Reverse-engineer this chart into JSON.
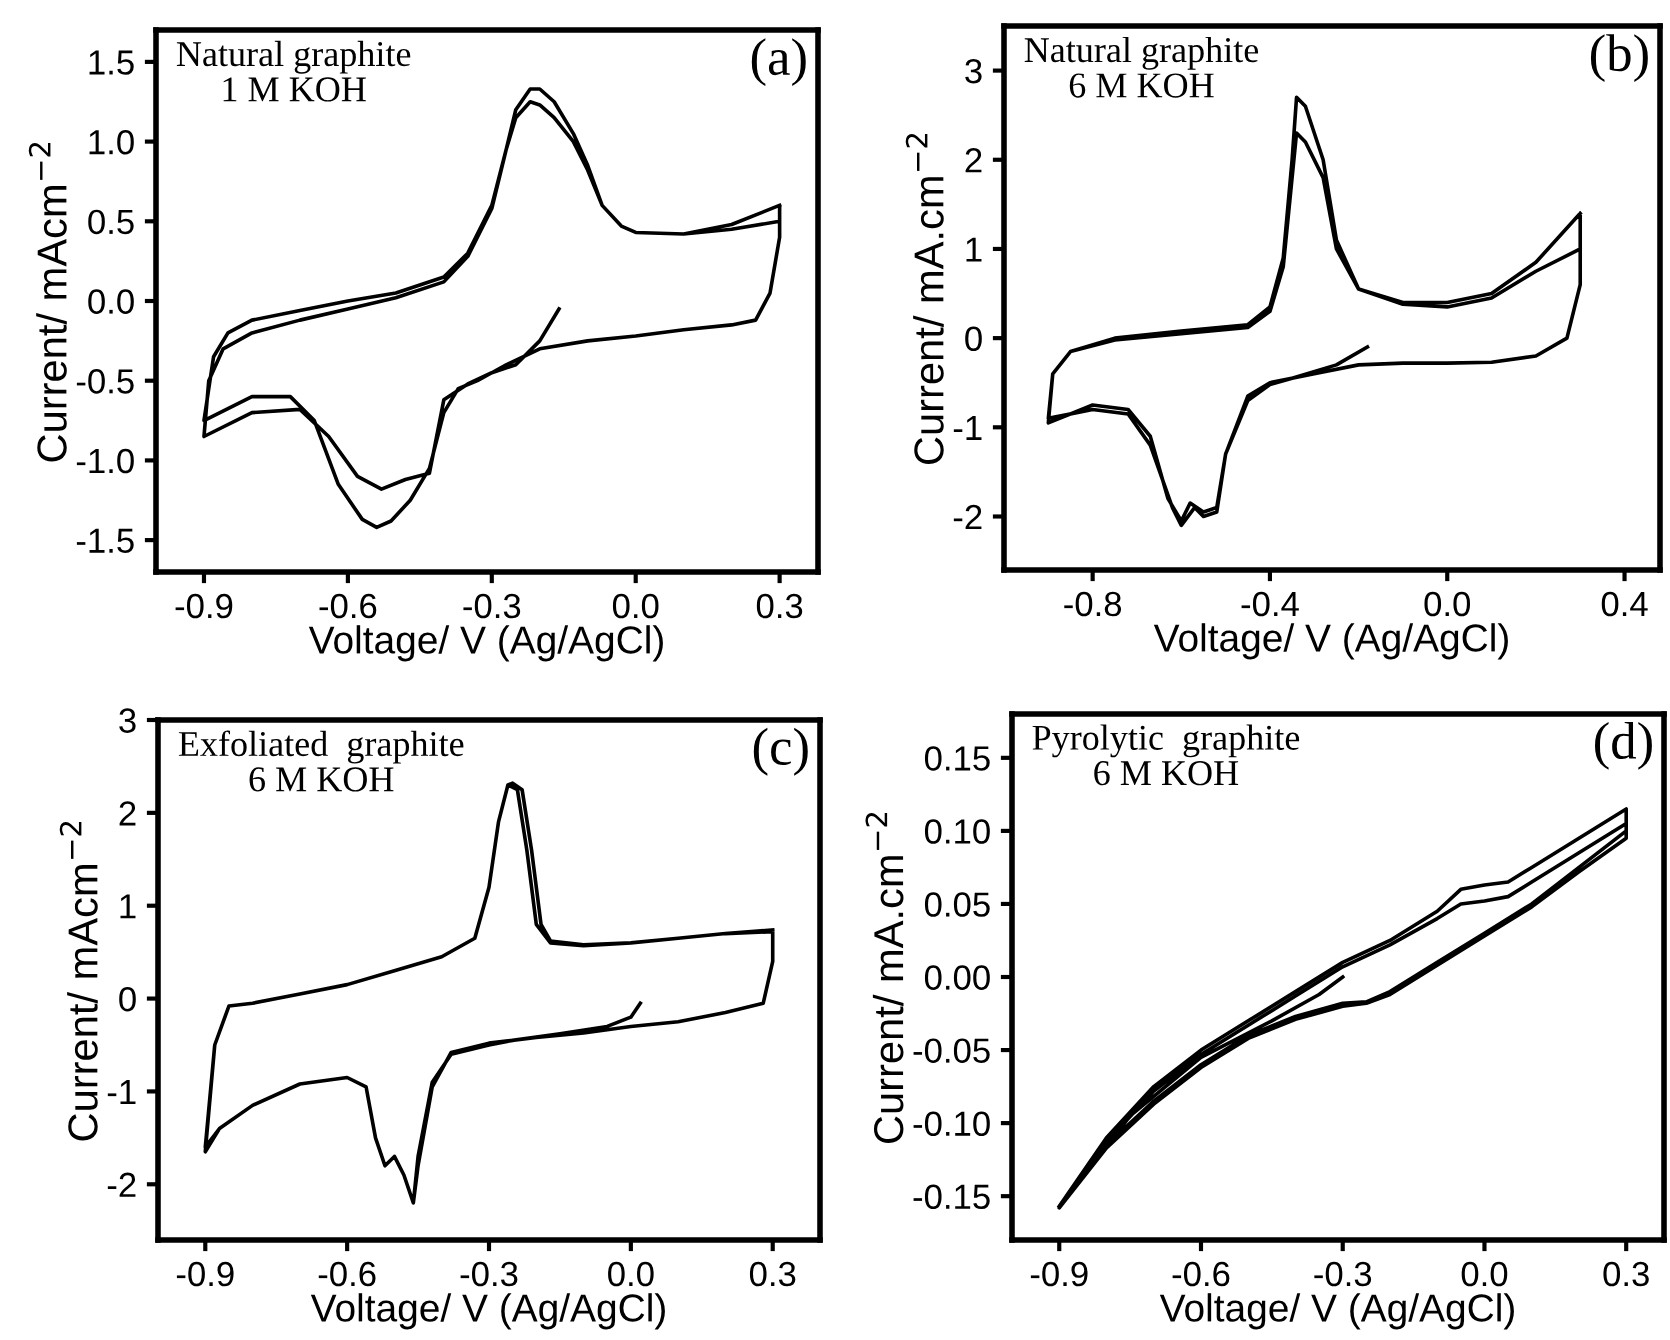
{
  "chart_data": [
    {
      "type": "line",
      "xlabel": "Voltage/ V (Ag/AgCl)",
      "ylabel": "Current/ mAcm$^{−2}$",
      "annotations": [
        "Natural graphite\n1 M KOH",
        "(a)"
      ],
      "xlim": [
        -1.0,
        0.38
      ],
      "xticks": [
        {
          "value": -0.9,
          "label": "-0.9"
        },
        {
          "value": -0.6,
          "label": "-0.6"
        },
        {
          "value": -0.3,
          "label": "-0.3"
        },
        {
          "value": 0.0,
          "label": "0.0"
        },
        {
          "value": 0.3,
          "label": "0.3"
        }
      ],
      "ylim": [
        -1.7,
        1.7
      ],
      "yticks": [
        {
          "value": -1.5,
          "label": "-1.5"
        },
        {
          "value": -1.0,
          "label": "-1.0"
        },
        {
          "value": -0.5,
          "label": "-0.5"
        },
        {
          "value": 0.0,
          "label": "0.0"
        },
        {
          "value": 0.5,
          "label": "0.5"
        },
        {
          "value": 1.0,
          "label": "1.0"
        },
        {
          "value": 1.5,
          "label": "1.5"
        }
      ],
      "grid": false,
      "legend": false,
      "marker": "none",
      "line_style": "solid",
      "series": [
        {
          "color": "#000000",
          "x": [
            -0.16,
            -0.2,
            -0.25,
            -0.3,
            -0.35,
            -0.4,
            -0.43,
            -0.48,
            -0.53,
            -0.58,
            -0.64,
            -0.7,
            -0.8,
            -0.9,
            -0.89,
            -0.86,
            -0.8,
            -0.7,
            -0.6,
            -0.5,
            -0.4,
            -0.35,
            -0.3,
            -0.27,
            -0.25,
            -0.22,
            -0.2,
            -0.17,
            -0.13,
            -0.1,
            -0.07,
            -0.03,
            0.0,
            0.1,
            0.2,
            0.3,
            0.3,
            0.3,
            0.28,
            0.25,
            0.2,
            0.1,
            0.0,
            -0.1,
            -0.2,
            -0.27,
            -0.33,
            -0.37,
            -0.4,
            -0.43,
            -0.47,
            -0.51,
            -0.54,
            -0.57,
            -0.62,
            -0.67,
            -0.72,
            -0.8,
            -0.9,
            -0.88,
            -0.85,
            -0.8,
            -0.7,
            -0.6,
            -0.5,
            -0.4,
            -0.35,
            -0.3,
            -0.27,
            -0.25,
            -0.22,
            -0.2,
            -0.17,
            -0.13,
            -0.1,
            -0.07,
            -0.03,
            0.0,
            0.1,
            0.2,
            0.3
          ],
          "values": [
            -0.05,
            -0.25,
            -0.4,
            -0.45,
            -0.52,
            -0.62,
            -1.08,
            -1.12,
            -1.18,
            -1.1,
            -0.85,
            -0.68,
            -0.7,
            -0.85,
            -0.5,
            -0.3,
            -0.2,
            -0.12,
            -0.05,
            0.02,
            0.12,
            0.28,
            0.58,
            0.95,
            1.15,
            1.25,
            1.23,
            1.15,
            1.0,
            0.82,
            0.6,
            0.47,
            0.43,
            0.42,
            0.45,
            0.5,
            0.6,
            0.4,
            0.05,
            -0.12,
            -0.15,
            -0.18,
            -0.22,
            -0.25,
            -0.3,
            -0.4,
            -0.5,
            -0.55,
            -0.7,
            -1.05,
            -1.25,
            -1.38,
            -1.42,
            -1.37,
            -1.15,
            -0.75,
            -0.6,
            -0.6,
            -0.75,
            -0.35,
            -0.2,
            -0.12,
            -0.06,
            0.0,
            0.05,
            0.15,
            0.3,
            0.6,
            0.95,
            1.2,
            1.33,
            1.33,
            1.25,
            1.05,
            0.85,
            0.6,
            0.47,
            0.43,
            0.42,
            0.48,
            0.6
          ]
        }
      ]
    },
    {
      "type": "line",
      "xlabel": "Voltage/ V (Ag/AgCl)",
      "ylabel": "Current/ mA.cm$^{−2}$",
      "annotations": [
        "Natural graphite\n6 M KOH",
        "(b)"
      ],
      "xlim": [
        -1.0,
        0.48
      ],
      "xticks": [
        {
          "value": -0.8,
          "label": "-0.8"
        },
        {
          "value": -0.4,
          "label": "-0.4"
        },
        {
          "value": 0.0,
          "label": "0.0"
        },
        {
          "value": 0.4,
          "label": "0.4"
        }
      ],
      "ylim": [
        -2.6,
        3.5
      ],
      "yticks": [
        {
          "value": -2,
          "label": "-2"
        },
        {
          "value": -1,
          "label": "-1"
        },
        0,
        1,
        2,
        3
      ],
      "grid": false,
      "legend": false,
      "marker": "none",
      "line_style": "solid",
      "series": [
        {
          "color": "#000000",
          "x": [
            -0.18,
            -0.25,
            -0.35,
            -0.4,
            -0.45,
            -0.5,
            -0.52,
            -0.55,
            -0.58,
            -0.6,
            -0.63,
            -0.67,
            -0.72,
            -0.8,
            -0.9,
            -0.89,
            -0.85,
            -0.75,
            -0.6,
            -0.45,
            -0.4,
            -0.37,
            -0.35,
            -0.34,
            -0.32,
            -0.28,
            -0.25,
            -0.2,
            -0.1,
            0.0,
            0.1,
            0.2,
            0.3,
            0.3,
            0.3,
            0.27,
            0.2,
            0.1,
            0.0,
            -0.1,
            -0.2,
            -0.3,
            -0.4,
            -0.45,
            -0.5,
            -0.52,
            -0.55,
            -0.57,
            -0.6,
            -0.62,
            -0.67,
            -0.72,
            -0.8,
            -0.9,
            -0.89,
            -0.85,
            -0.75,
            -0.6,
            -0.45,
            -0.4,
            -0.37,
            -0.35,
            -0.34,
            -0.32,
            -0.28,
            -0.25,
            -0.2,
            -0.1,
            0.0,
            0.1,
            0.2,
            0.3
          ],
          "values": [
            -0.1,
            -0.3,
            -0.45,
            -0.52,
            -0.7,
            -1.3,
            -1.9,
            -1.95,
            -1.85,
            -2.05,
            -1.8,
            -1.1,
            -0.8,
            -0.75,
            -0.95,
            -0.4,
            -0.15,
            -0.02,
            0.05,
            0.12,
            0.3,
            0.8,
            1.8,
            2.3,
            2.2,
            1.8,
            1.0,
            0.55,
            0.38,
            0.35,
            0.45,
            0.75,
            1.0,
            1.4,
            0.6,
            0.0,
            -0.2,
            -0.27,
            -0.28,
            -0.28,
            -0.3,
            -0.4,
            -0.5,
            -0.65,
            -1.3,
            -1.95,
            -2.0,
            -1.9,
            -2.1,
            -1.9,
            -1.2,
            -0.85,
            -0.8,
            -0.9,
            -0.4,
            -0.15,
            0.0,
            0.08,
            0.15,
            0.35,
            0.9,
            2.0,
            2.7,
            2.6,
            2.0,
            1.1,
            0.55,
            0.4,
            0.4,
            0.5,
            0.85,
            1.4
          ]
        }
      ]
    },
    {
      "type": "line",
      "xlabel": "Voltage/ V (Ag/AgCl)",
      "ylabel": "Current/ mAcm$^{−2}$",
      "annotations": [
        "Exfoliated  graphite\n6 M KOH",
        "(c)"
      ],
      "xlim": [
        -1.0,
        0.4
      ],
      "xticks": [
        {
          "value": -0.9,
          "label": "-0.9"
        },
        {
          "value": -0.6,
          "label": "-0.6"
        },
        {
          "value": -0.3,
          "label": "-0.3"
        },
        {
          "value": 0.0,
          "label": "0.0"
        },
        {
          "value": 0.3,
          "label": "0.3"
        }
      ],
      "ylim": [
        -2.6,
        3.0
      ],
      "yticks": [
        {
          "value": -2,
          "label": "-2"
        },
        {
          "value": -1,
          "label": "-1"
        },
        0,
        1,
        2,
        3
      ],
      "grid": false,
      "legend": false,
      "marker": "none",
      "line_style": "solid",
      "series": [
        {
          "color": "#000000",
          "x": [
            0.02,
            0.0,
            -0.05,
            -0.15,
            -0.25,
            -0.3,
            -0.38,
            -0.42,
            -0.45,
            -0.46,
            -0.48,
            -0.5,
            -0.52,
            -0.54,
            -0.56,
            -0.6,
            -0.7,
            -0.8,
            -0.87,
            -0.9,
            -0.88,
            -0.85,
            -0.8,
            -0.7,
            -0.6,
            -0.5,
            -0.4,
            -0.33,
            -0.3,
            -0.28,
            -0.26,
            -0.24,
            -0.22,
            -0.2,
            -0.17,
            -0.1,
            0.0,
            0.1,
            0.2,
            0.3,
            0.3,
            0.28,
            0.2,
            0.1,
            0.0,
            -0.1,
            -0.2,
            -0.3,
            -0.38,
            -0.42,
            -0.45,
            -0.46,
            -0.48,
            -0.5,
            -0.52,
            -0.54,
            -0.56,
            -0.6,
            -0.7,
            -0.8,
            -0.87,
            -0.9,
            -0.88,
            -0.85,
            -0.8,
            -0.7,
            -0.6,
            -0.5,
            -0.4,
            -0.33,
            -0.3,
            -0.28,
            -0.26,
            -0.25,
            -0.23,
            -0.21,
            -0.19,
            -0.17,
            -0.1,
            0.0,
            0.1,
            0.2,
            0.3
          ],
          "values": [
            -0.05,
            -0.2,
            -0.3,
            -0.38,
            -0.45,
            -0.5,
            -0.6,
            -0.9,
            -1.7,
            -2.2,
            -1.9,
            -1.7,
            -1.8,
            -1.5,
            -0.95,
            -0.85,
            -0.92,
            -1.15,
            -1.4,
            -1.65,
            -0.5,
            -0.08,
            -0.05,
            0.05,
            0.15,
            0.3,
            0.45,
            0.65,
            1.2,
            1.9,
            2.3,
            2.25,
            1.6,
            0.8,
            0.6,
            0.57,
            0.6,
            0.65,
            0.7,
            0.72,
            0.4,
            -0.05,
            -0.15,
            -0.25,
            -0.3,
            -0.37,
            -0.42,
            -0.48,
            -0.58,
            -0.95,
            -1.8,
            -2.2,
            -1.9,
            -1.7,
            -1.8,
            -1.5,
            -0.95,
            -0.85,
            -0.92,
            -1.15,
            -1.4,
            -1.6,
            -0.5,
            -0.08,
            -0.05,
            0.05,
            0.15,
            0.3,
            0.45,
            0.65,
            1.2,
            1.9,
            2.3,
            2.32,
            2.25,
            1.6,
            0.8,
            0.62,
            0.58,
            0.6,
            0.65,
            0.7,
            0.74
          ]
        }
      ]
    },
    {
      "type": "line",
      "xlabel": "Voltage/ V (Ag/AgCl)",
      "ylabel": "Current/ mA.cm$^{−2}$",
      "annotations": [
        "Pyrolytic  graphite\n6 M KOH",
        "(d)"
      ],
      "xlim": [
        -1.0,
        0.38
      ],
      "xticks": [
        {
          "value": -0.9,
          "label": "-0.9"
        },
        {
          "value": -0.6,
          "label": "-0.6"
        },
        {
          "value": -0.3,
          "label": "-0.3"
        },
        {
          "value": 0.0,
          "label": "0.0"
        },
        {
          "value": 0.3,
          "label": "0.3"
        }
      ],
      "ylim": [
        -0.18,
        0.18
      ],
      "yticks": [
        {
          "value": -0.15,
          "label": "-0.15"
        },
        {
          "value": -0.1,
          "label": "-0.10"
        },
        {
          "value": -0.05,
          "label": "-0.05"
        },
        {
          "value": 0.0,
          "label": "0.00"
        },
        {
          "value": 0.05,
          "label": "0.05"
        },
        {
          "value": 0.1,
          "label": "0.10"
        },
        {
          "value": 0.15,
          "label": "0.15"
        }
      ],
      "grid": false,
      "legend": false,
      "marker": "none",
      "line_style": "solid",
      "series": [
        {
          "color": "#000000",
          "x": [
            -0.3,
            -0.35,
            -0.45,
            -0.6,
            -0.75,
            -0.9,
            -0.8,
            -0.7,
            -0.6,
            -0.5,
            -0.4,
            -0.3,
            -0.2,
            -0.1,
            -0.05,
            0.0,
            0.05,
            0.1,
            0.2,
            0.3,
            0.3,
            0.2,
            0.1,
            0.0,
            -0.1,
            -0.2,
            -0.25,
            -0.3,
            -0.4,
            -0.5,
            -0.6,
            -0.7,
            -0.8,
            -0.9,
            -0.9,
            -0.8,
            -0.7,
            -0.6,
            -0.5,
            -0.4,
            -0.3,
            -0.2,
            -0.1,
            -0.05,
            0.0,
            0.05,
            0.1,
            0.2,
            0.3,
            0.3,
            0.2,
            0.1,
            0.0,
            -0.1,
            -0.2,
            -0.25,
            -0.3,
            -0.4,
            -0.5,
            -0.6,
            -0.7,
            -0.8,
            -0.9
          ],
          "values": [
            0.0,
            -0.012,
            -0.03,
            -0.055,
            -0.095,
            -0.158,
            -0.113,
            -0.078,
            -0.053,
            -0.033,
            -0.013,
            0.007,
            0.022,
            0.04,
            0.05,
            0.052,
            0.055,
            0.065,
            0.085,
            0.105,
            0.095,
            0.072,
            0.048,
            0.028,
            0.008,
            -0.012,
            -0.018,
            -0.02,
            -0.029,
            -0.042,
            -0.062,
            -0.087,
            -0.117,
            -0.158,
            -0.157,
            -0.11,
            -0.075,
            -0.05,
            -0.03,
            -0.01,
            0.01,
            0.025,
            0.045,
            0.06,
            0.063,
            0.065,
            0.075,
            0.095,
            0.115,
            0.1,
            0.075,
            0.05,
            0.03,
            0.01,
            -0.01,
            -0.017,
            -0.018,
            -0.027,
            -0.04,
            -0.06,
            -0.085,
            -0.115,
            -0.157
          ]
        }
      ]
    }
  ]
}
